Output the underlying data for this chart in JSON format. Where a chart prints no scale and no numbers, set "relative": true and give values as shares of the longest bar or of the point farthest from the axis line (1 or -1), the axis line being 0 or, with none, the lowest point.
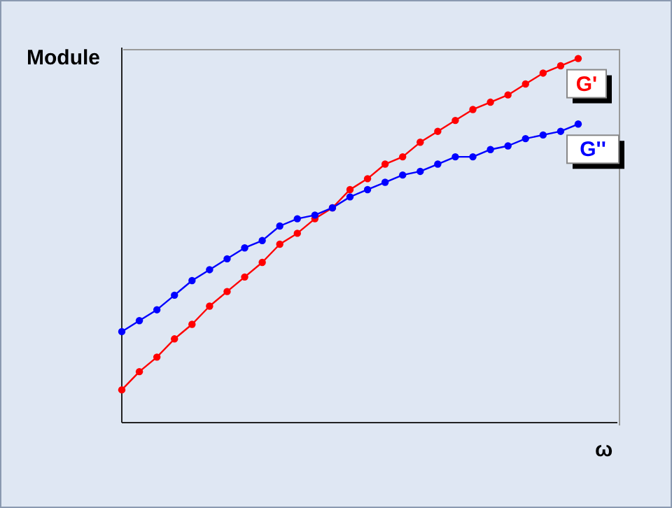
{
  "chart_data": {
    "type": "line",
    "relative": true,
    "ylabel": "Module",
    "xlabel": "ω",
    "marker": "circle",
    "categories": [
      null,
      null,
      null,
      null,
      null,
      null,
      null,
      null,
      null,
      null,
      null,
      null,
      null,
      null,
      null,
      null,
      null,
      null,
      null,
      null,
      null,
      null,
      null,
      null,
      null,
      null,
      null
    ],
    "series": [
      {
        "name": "G'",
        "color": "#ff0000",
        "values": [
          0.09,
          0.14,
          0.18,
          0.23,
          0.27,
          0.32,
          0.36,
          0.4,
          0.44,
          0.49,
          0.52,
          0.56,
          0.59,
          0.64,
          0.67,
          0.71,
          0.73,
          0.77,
          0.8,
          0.83,
          0.86,
          0.88,
          0.9,
          0.93,
          0.96,
          0.98,
          1
        ]
      },
      {
        "name": "G''",
        "color": "#0000ff",
        "values": [
          0.25,
          0.28,
          0.31,
          0.35,
          0.39,
          0.42,
          0.45,
          0.48,
          0.5,
          0.54,
          0.56,
          0.57,
          0.59,
          0.62,
          0.64,
          0.66,
          0.68,
          0.69,
          0.71,
          0.73,
          0.73,
          0.75,
          0.76,
          0.78,
          0.79,
          0.8,
          0.82
        ]
      }
    ]
  }
}
